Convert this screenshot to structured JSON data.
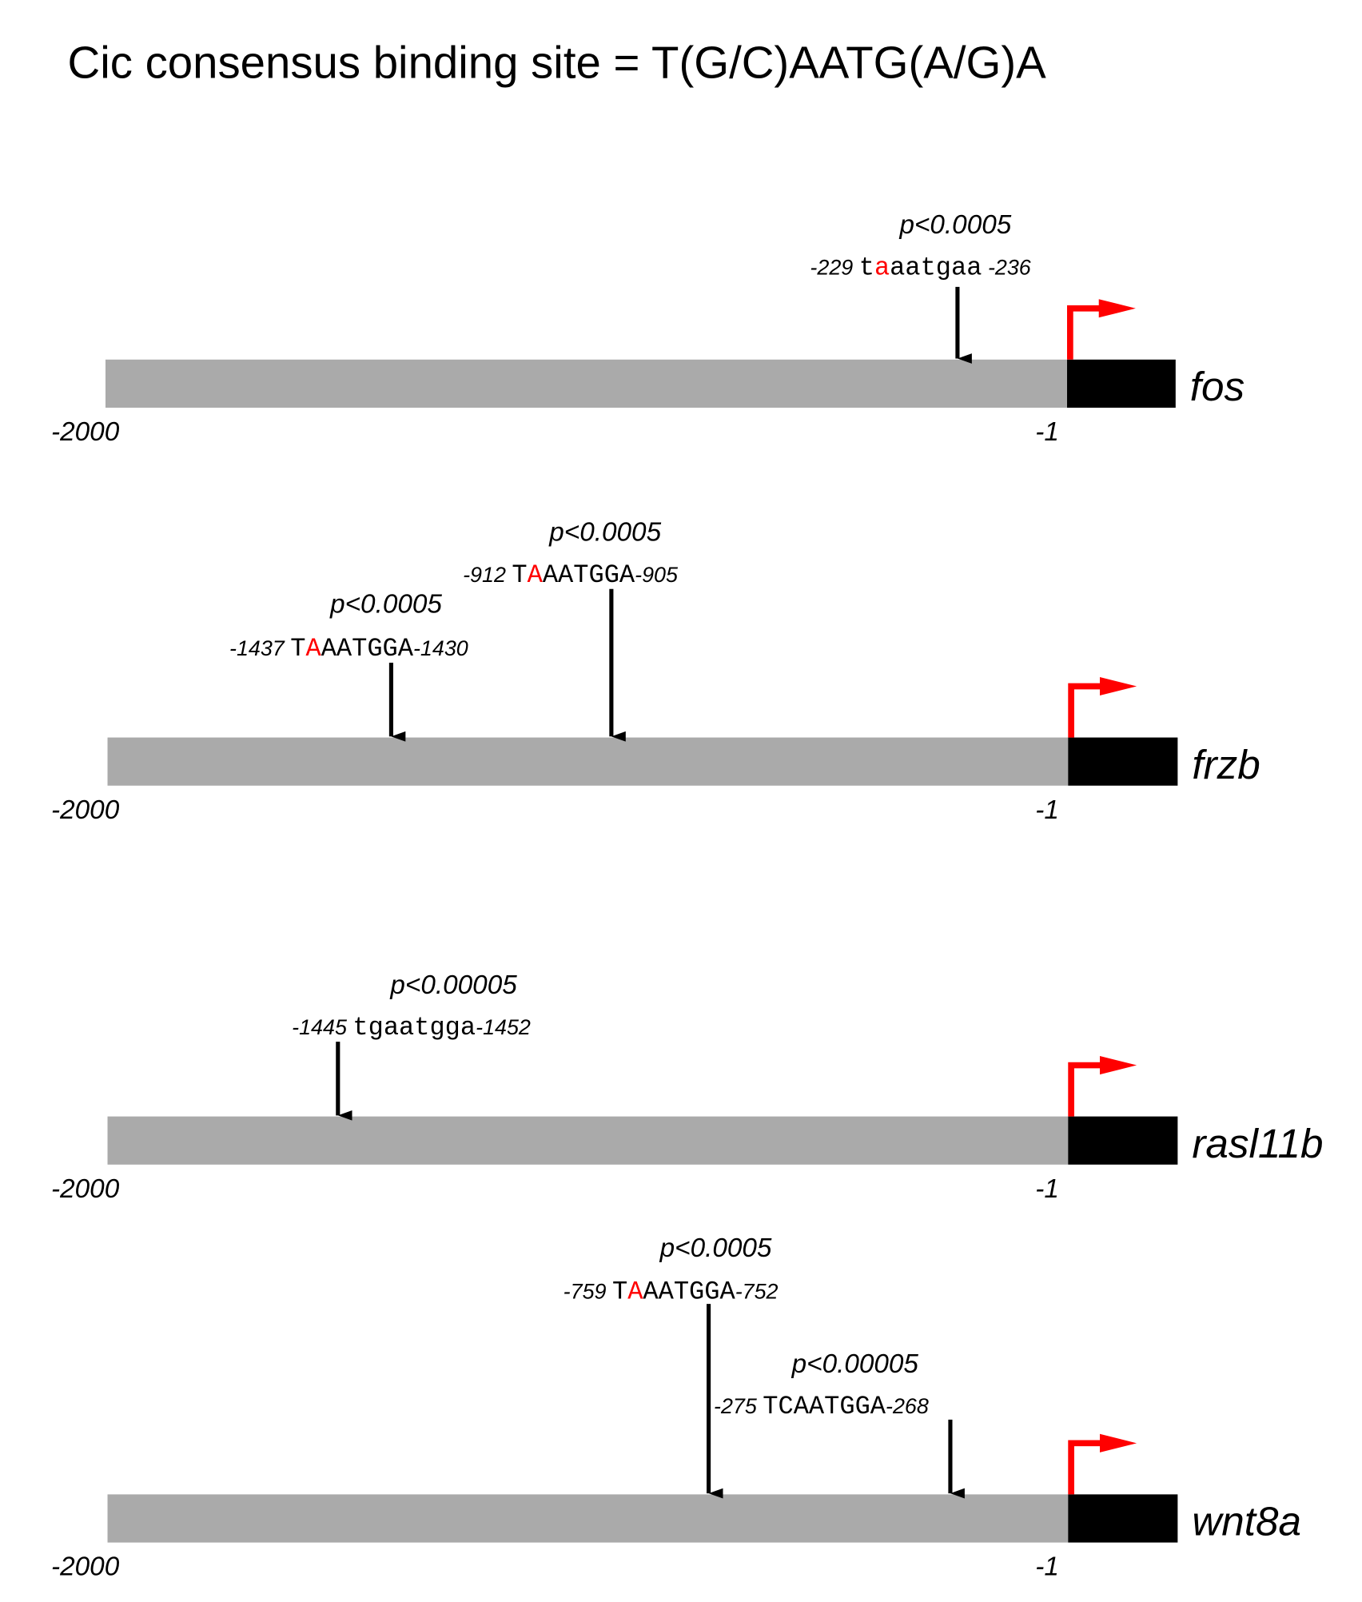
{
  "title": "Cic consensus binding site = T(G/C)AATG(A/G)A",
  "colors": {
    "promoter": "#aaaaaa",
    "gene_body": "#000000",
    "tss_arrow": "#ff0000",
    "highlight": "#ff0000"
  },
  "axis": {
    "start": "-2000",
    "end": "-1"
  },
  "tracks": [
    {
      "gene": "fos",
      "sites": [
        {
          "pvalue": "p<0.0005",
          "start": "-229",
          "seq_pre": "t",
          "seq_red": "a",
          "seq_post": "aatgaa",
          "end": "-236"
        }
      ]
    },
    {
      "gene": "frzb",
      "sites": [
        {
          "pvalue": "p<0.0005",
          "start": "-1437",
          "seq_pre": "T",
          "seq_red": "A",
          "seq_post": "AATGGA",
          "end": "-1430"
        },
        {
          "pvalue": "p<0.0005",
          "start": "-912",
          "seq_pre": "T",
          "seq_red": "A",
          "seq_post": "AATGGA",
          "end": "-905"
        }
      ]
    },
    {
      "gene": "rasl11b",
      "sites": [
        {
          "pvalue": "p<0.00005",
          "start": "-1445",
          "seq_pre": "tgaatgga",
          "seq_red": "",
          "seq_post": "",
          "end": "-1452"
        }
      ]
    },
    {
      "gene": "wnt8a",
      "sites": [
        {
          "pvalue": "p<0.0005",
          "start": "-759",
          "seq_pre": "T",
          "seq_red": "A",
          "seq_post": "AATGGA",
          "end": "-752"
        },
        {
          "pvalue": "p<0.00005",
          "start": "-275",
          "seq_pre": "TCAATGGA",
          "seq_red": "",
          "seq_post": "",
          "end": "-268"
        }
      ]
    }
  ]
}
